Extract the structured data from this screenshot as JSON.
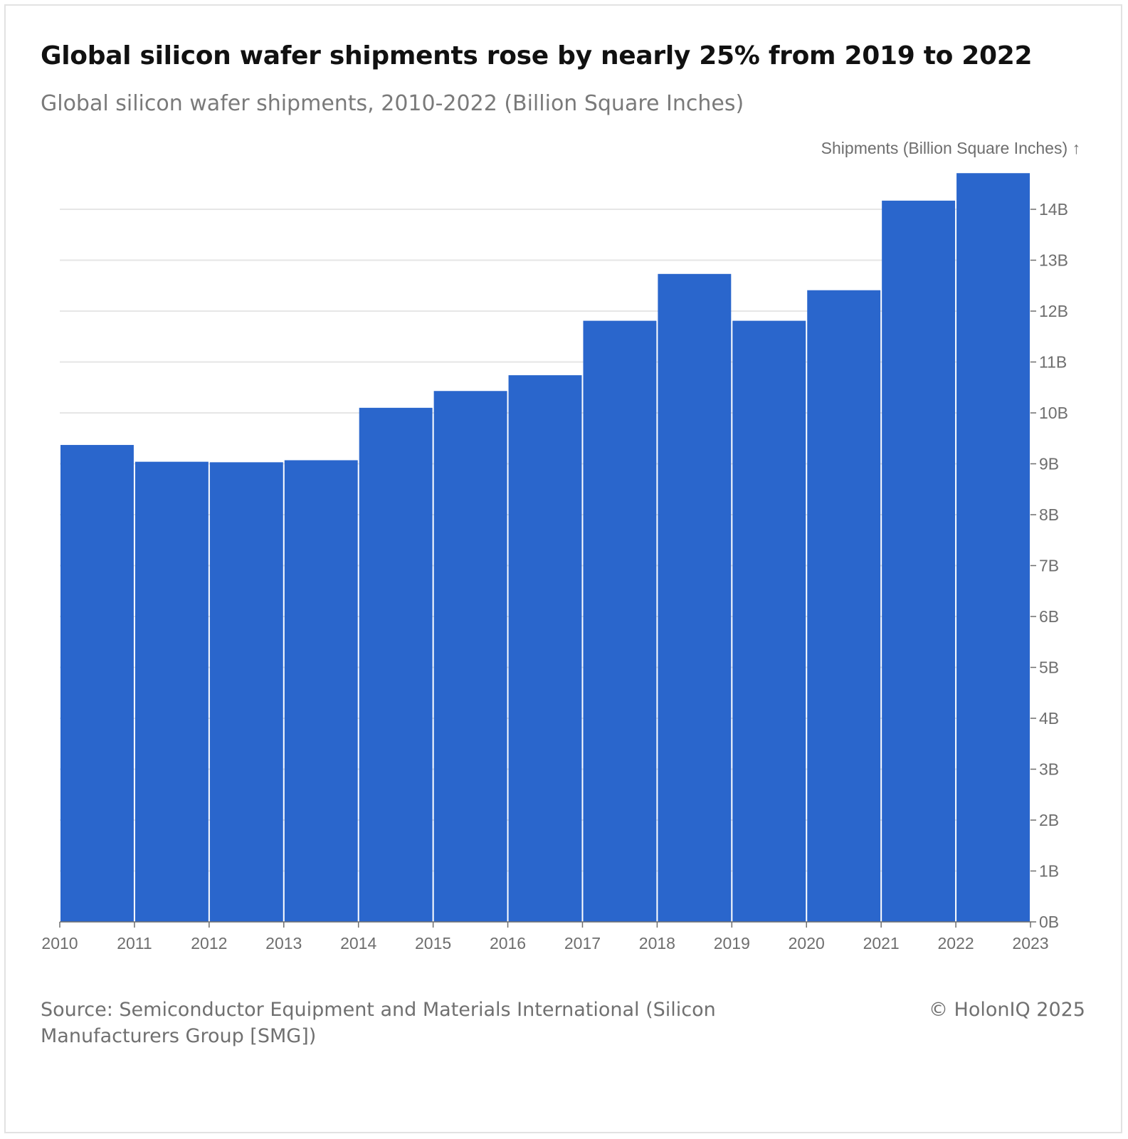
{
  "header": {
    "title": "Global silicon wafer shipments rose by nearly 25% from 2019 to 2022",
    "subtitle": "Global silicon wafer shipments, 2010-2022 (Billion Square Inches)"
  },
  "footer": {
    "source": "Source: Semiconductor Equipment and Materials International (Silicon Manufacturers Group [SMG])",
    "copyright": "© HolonIQ 2025"
  },
  "chart_data": {
    "type": "bar",
    "title": "Global silicon wafer shipments rose by nearly 25% from 2019 to 2022",
    "subtitle": "Global silicon wafer shipments, 2010-2022 (Billion Square Inches)",
    "ylabel": "Shipments (Billion Square Inches) ↑",
    "xlabel": "",
    "bar_color": "#2a66cc",
    "x_ticks": [
      "2010",
      "2011",
      "2012",
      "2013",
      "2014",
      "2015",
      "2016",
      "2017",
      "2018",
      "2019",
      "2020",
      "2021",
      "2022",
      "2023"
    ],
    "y_ticks": [
      "0B",
      "1B",
      "2B",
      "3B",
      "4B",
      "5B",
      "6B",
      "7B",
      "8B",
      "9B",
      "10B",
      "11B",
      "12B",
      "13B",
      "14B"
    ],
    "y_axis_position": "right",
    "grid": true,
    "ylim": [
      0,
      14.7
    ],
    "series": [
      {
        "x_start": [
          2010,
          2011,
          2012,
          2013,
          2014,
          2015,
          2016,
          2017,
          2018,
          2019,
          2020,
          2021,
          2022
        ],
        "values": [
          9.37,
          9.04,
          9.03,
          9.07,
          10.1,
          10.43,
          10.74,
          11.81,
          12.73,
          11.81,
          12.41,
          14.17,
          14.71
        ]
      }
    ]
  }
}
